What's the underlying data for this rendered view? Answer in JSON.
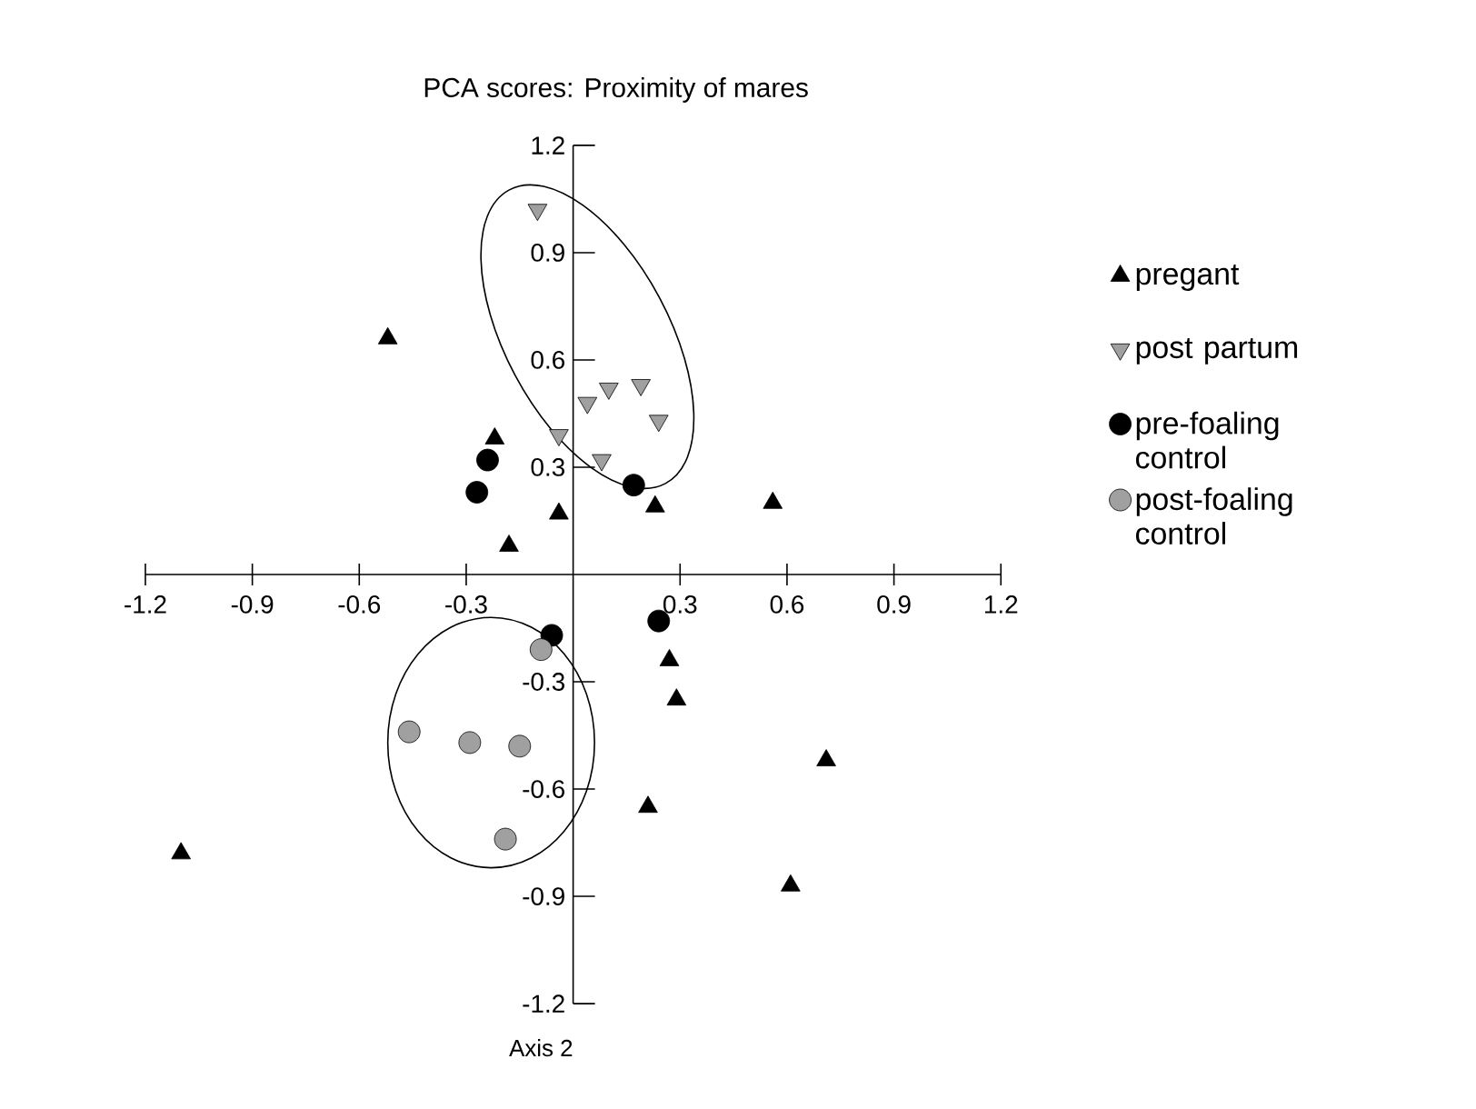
{
  "chart_data": {
    "type": "scatter",
    "title": "PCA scores: Proximity of mares",
    "xlabel": "Axis 2",
    "xlim": [
      -1.2,
      1.2
    ],
    "ylim": [
      -1.2,
      1.2
    ],
    "xticks": [
      -1.2,
      -0.9,
      -0.6,
      -0.3,
      0.3,
      0.6,
      0.9,
      1.2
    ],
    "yticks": [
      -1.2,
      -0.9,
      -0.6,
      -0.3,
      0.3,
      0.6,
      0.9,
      1.2
    ],
    "legend": "right",
    "grid": false,
    "series": [
      {
        "name": "pregant",
        "color": "#000000",
        "marker": "triangle",
        "x": [
          -0.52,
          -0.22,
          -0.04,
          -0.18,
          0.23,
          0.56,
          0.27,
          0.29,
          0.71,
          0.21,
          0.61,
          -1.1
        ],
        "values": [
          0.66,
          0.38,
          0.17,
          0.08,
          0.19,
          0.2,
          -0.24,
          -0.35,
          -0.52,
          -0.65,
          -0.87,
          -0.78
        ]
      },
      {
        "name": "post partum",
        "color": "#a0a0a0",
        "marker": "triangle-down",
        "x": [
          -0.1,
          0.04,
          0.1,
          0.19,
          0.24,
          -0.04,
          0.08
        ],
        "values": [
          1.02,
          0.48,
          0.52,
          0.53,
          0.43,
          0.39,
          0.32
        ]
      },
      {
        "name": "pre-foaling control",
        "color": "#000000",
        "marker": "circle",
        "x": [
          -0.24,
          -0.27,
          0.17,
          -0.06,
          0.24
        ],
        "values": [
          0.32,
          0.23,
          0.25,
          -0.17,
          -0.13
        ]
      },
      {
        "name": "post-foaling control",
        "color": "#a0a0a0",
        "marker": "circle",
        "x": [
          -0.09,
          -0.46,
          -0.29,
          -0.15,
          -0.19
        ],
        "values": [
          -0.21,
          -0.44,
          -0.47,
          -0.48,
          -0.74
        ]
      }
    ]
  }
}
